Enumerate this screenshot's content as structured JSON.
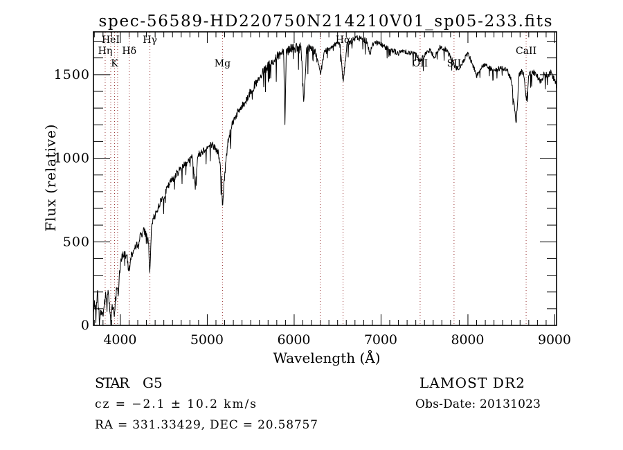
{
  "chart_data": {
    "type": "line",
    "title": "spec-56589-HD220750N214210V01_sp05-233.fits",
    "xlabel": "Wavelength (Å)",
    "ylabel": "Flux (relative)",
    "xlim": [
      3690,
      9020
    ],
    "ylim": [
      0,
      1756
    ],
    "x_major_ticks": [
      4000,
      5000,
      6000,
      7000,
      8000,
      9000
    ],
    "x_minor_tick_step": 100,
    "y_major_ticks": [
      0,
      500,
      1000,
      1500
    ],
    "y_minor_tick_step": 100,
    "grid": false,
    "legend": false,
    "background": "#ffffff",
    "line_color": "#000000",
    "marker_line_color": "#993333",
    "spectral_lines": [
      {
        "label": "Hη",
        "wavelength": 3825,
        "row": 2
      },
      {
        "label": "HeI",
        "wavelength": 3889,
        "row": 1
      },
      {
        "label": "K",
        "wavelength": 3933,
        "row": 3
      },
      {
        "label": "",
        "wavelength": 3968,
        "row": 3
      },
      {
        "label": "Hδ",
        "wavelength": 4102,
        "row": 2
      },
      {
        "label": "Hγ",
        "wavelength": 4340,
        "row": 1
      },
      {
        "label": "Mg",
        "wavelength": 5175,
        "row": 3
      },
      {
        "label": "",
        "wavelength": 6300,
        "row": 3
      },
      {
        "label": "Hα",
        "wavelength": 6563,
        "row": 1
      },
      {
        "label": "OII",
        "wavelength": 7450,
        "row": 3
      },
      {
        "label": "SII",
        "wavelength": 7840,
        "row": 3
      },
      {
        "label": "CaII",
        "wavelength": 8670,
        "row": 2
      }
    ],
    "series": [
      {
        "name": "flux",
        "anchor_points": [
          [
            3690,
            70
          ],
          [
            3705,
            140
          ],
          [
            3720,
            60
          ],
          [
            3735,
            210
          ],
          [
            3750,
            90
          ],
          [
            3765,
            45
          ],
          [
            3780,
            85
          ],
          [
            3800,
            60
          ],
          [
            3815,
            130
          ],
          [
            3830,
            175
          ],
          [
            3845,
            140
          ],
          [
            3860,
            220
          ],
          [
            3875,
            120
          ],
          [
            3889,
            45
          ],
          [
            3905,
            115
          ],
          [
            3920,
            90
          ],
          [
            3933,
            48
          ],
          [
            3947,
            200
          ],
          [
            3960,
            235
          ],
          [
            3975,
            185
          ],
          [
            3990,
            310
          ],
          [
            4005,
            370
          ],
          [
            4020,
            420
          ],
          [
            4050,
            430
          ],
          [
            4075,
            405
          ],
          [
            4102,
            330
          ],
          [
            4125,
            420
          ],
          [
            4150,
            445
          ],
          [
            4180,
            465
          ],
          [
            4210,
            515
          ],
          [
            4240,
            545
          ],
          [
            4270,
            565
          ],
          [
            4300,
            545
          ],
          [
            4325,
            490
          ],
          [
            4340,
            300
          ],
          [
            4360,
            600
          ],
          [
            4390,
            650
          ],
          [
            4430,
            700
          ],
          [
            4470,
            750
          ],
          [
            4510,
            785
          ],
          [
            4550,
            830
          ],
          [
            4590,
            870
          ],
          [
            4630,
            895
          ],
          [
            4670,
            925
          ],
          [
            4710,
            950
          ],
          [
            4750,
            970
          ],
          [
            4790,
            990
          ],
          [
            4830,
            1005
          ],
          [
            4861,
            830
          ],
          [
            4890,
            1015
          ],
          [
            4930,
            1035
          ],
          [
            4970,
            1055
          ],
          [
            5010,
            1065
          ],
          [
            5050,
            1085
          ],
          [
            5090,
            1060
          ],
          [
            5130,
            1030
          ],
          [
            5160,
            900
          ],
          [
            5175,
            700
          ],
          [
            5190,
            830
          ],
          [
            5210,
            960
          ],
          [
            5240,
            1105
          ],
          [
            5270,
            1180
          ],
          [
            5300,
            1225
          ],
          [
            5340,
            1265
          ],
          [
            5380,
            1295
          ],
          [
            5420,
            1325
          ],
          [
            5460,
            1360
          ],
          [
            5500,
            1400
          ],
          [
            5550,
            1440
          ],
          [
            5600,
            1470
          ],
          [
            5650,
            1520
          ],
          [
            5700,
            1550
          ],
          [
            5750,
            1575
          ],
          [
            5800,
            1605
          ],
          [
            5850,
            1630
          ],
          [
            5880,
            1650
          ],
          [
            5894,
            1215
          ],
          [
            5910,
            1640
          ],
          [
            5950,
            1655
          ],
          [
            5990,
            1670
          ],
          [
            6030,
            1655
          ],
          [
            6080,
            1665
          ],
          [
            6110,
            1330
          ],
          [
            6140,
            1645
          ],
          [
            6200,
            1665
          ],
          [
            6250,
            1625
          ],
          [
            6300,
            1505
          ],
          [
            6350,
            1635
          ],
          [
            6400,
            1655
          ],
          [
            6450,
            1680
          ],
          [
            6500,
            1690
          ],
          [
            6530,
            1665
          ],
          [
            6563,
            1455
          ],
          [
            6610,
            1685
          ],
          [
            6660,
            1700
          ],
          [
            6720,
            1720
          ],
          [
            6780,
            1715
          ],
          [
            6840,
            1700
          ],
          [
            6870,
            1625
          ],
          [
            6920,
            1700
          ],
          [
            6980,
            1685
          ],
          [
            7050,
            1665
          ],
          [
            7120,
            1650
          ],
          [
            7200,
            1625
          ],
          [
            7260,
            1645
          ],
          [
            7330,
            1630
          ],
          [
            7400,
            1625
          ],
          [
            7450,
            1585
          ],
          [
            7510,
            1625
          ],
          [
            7560,
            1645
          ],
          [
            7620,
            1605
          ],
          [
            7680,
            1665
          ],
          [
            7740,
            1650
          ],
          [
            7800,
            1610
          ],
          [
            7854,
            1545
          ],
          [
            7900,
            1530
          ],
          [
            7950,
            1585
          ],
          [
            8000,
            1625
          ],
          [
            8050,
            1565
          ],
          [
            8100,
            1495
          ],
          [
            8150,
            1540
          ],
          [
            8200,
            1560
          ],
          [
            8250,
            1540
          ],
          [
            8300,
            1520
          ],
          [
            8350,
            1535
          ],
          [
            8400,
            1540
          ],
          [
            8450,
            1525
          ],
          [
            8500,
            1470
          ],
          [
            8530,
            1330
          ],
          [
            8556,
            1212
          ],
          [
            8590,
            1505
          ],
          [
            8620,
            1520
          ],
          [
            8645,
            1495
          ],
          [
            8673,
            1325
          ],
          [
            8700,
            1505
          ],
          [
            8750,
            1520
          ],
          [
            8800,
            1490
          ],
          [
            8840,
            1455
          ],
          [
            8880,
            1505
          ],
          [
            8920,
            1490
          ],
          [
            8960,
            1515
          ],
          [
            9000,
            1465
          ],
          [
            9020,
            1430
          ]
        ]
      }
    ],
    "noise_profile": [
      [
        3690,
        50
      ],
      [
        3950,
        45
      ],
      [
        4200,
        40
      ],
      [
        4600,
        38
      ],
      [
        5000,
        38
      ],
      [
        5400,
        40
      ],
      [
        5700,
        45
      ],
      [
        5900,
        50
      ],
      [
        6100,
        55
      ],
      [
        6300,
        35
      ],
      [
        6600,
        30
      ],
      [
        6900,
        28
      ],
      [
        7200,
        26
      ],
      [
        7600,
        26
      ],
      [
        7900,
        25
      ],
      [
        8200,
        26
      ],
      [
        8500,
        28
      ],
      [
        8800,
        30
      ],
      [
        9020,
        34
      ]
    ],
    "noise_seed": 7,
    "spike_probability": 0.05
  },
  "annotations": {
    "object_type": "STAR",
    "subclass": "G5",
    "cz": "cz = −2.1 ± 10.2 km/s",
    "radec": "RA = 331.33429, DEC =  20.58757",
    "survey": "LAMOST DR2",
    "obs_date": "Obs-Date: 20131023"
  }
}
